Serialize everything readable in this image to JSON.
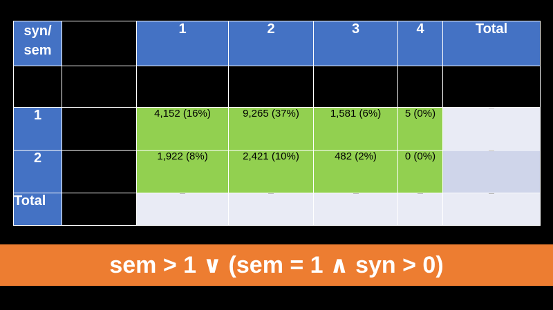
{
  "table": {
    "corner_label_line1": "syn/",
    "corner_label_line2": "sem",
    "column_headers": [
      "1",
      "2",
      "3",
      "4",
      "Total"
    ],
    "rows": [
      {
        "label": "1",
        "cells": [
          "4,152 (16%)",
          "9,265 (37%)",
          "1,581 (6%)",
          "5 (0%)"
        ]
      },
      {
        "label": "2",
        "cells": [
          "1,922 (8%)",
          "2,421 (10%)",
          "482 (2%)",
          "0 (0%)"
        ]
      }
    ],
    "total_row_label": "Total"
  },
  "formula": "sem > 1 ∨ (sem = 1 ∧ syn > 0)",
  "colors": {
    "header_blue": "#4472c4",
    "cell_green": "#92d050",
    "cell_light": "#e9ebf5",
    "cell_lighter": "#cfd5ea",
    "formula_orange": "#ed7d31",
    "background": "#000000"
  }
}
